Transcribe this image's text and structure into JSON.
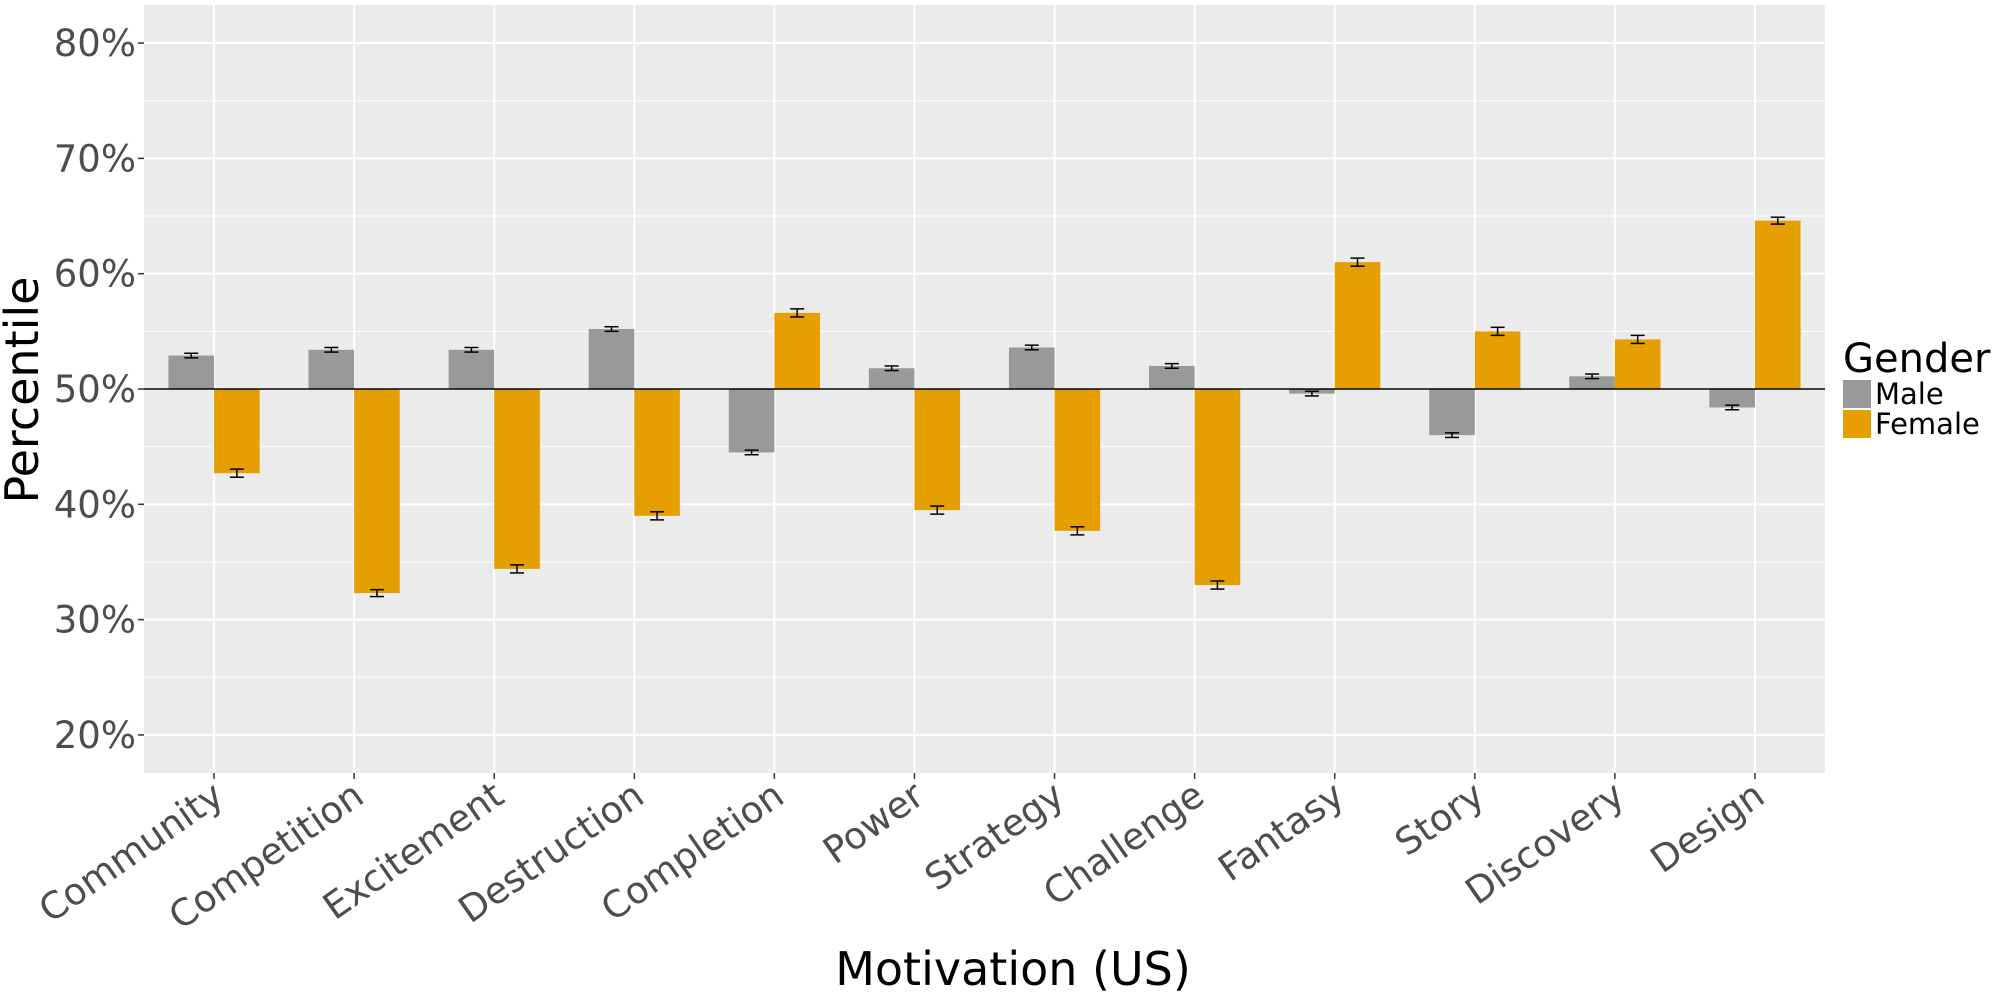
{
  "chart_data": {
    "type": "bar",
    "title": "",
    "xlabel": "Motivation (US)",
    "ylabel": "Percentile",
    "ylim": [
      16.7,
      83.3
    ],
    "yticks": [
      20,
      30,
      40,
      50,
      60,
      70,
      80
    ],
    "ytick_labels": [
      "20%",
      "30%",
      "40%",
      "50%",
      "60%",
      "70%",
      "80%"
    ],
    "baseline": 50,
    "grid": true,
    "legend": {
      "title": "Gender",
      "placement": "right"
    },
    "categories": [
      "Community",
      "Competition",
      "Excitement",
      "Destruction",
      "Completion",
      "Power",
      "Strategy",
      "Challenge",
      "Fantasy",
      "Story",
      "Discovery",
      "Design"
    ],
    "series": [
      {
        "name": "Male",
        "color": "#999999",
        "values": [
          52.9,
          53.4,
          53.4,
          55.2,
          44.5,
          51.8,
          53.6,
          52.0,
          49.6,
          46.0,
          51.1,
          48.4
        ],
        "errors": [
          0.2,
          0.2,
          0.2,
          0.2,
          0.2,
          0.2,
          0.2,
          0.2,
          0.2,
          0.2,
          0.2,
          0.2
        ]
      },
      {
        "name": "Female",
        "color": "#E69F00",
        "values": [
          42.7,
          32.3,
          34.4,
          39.0,
          56.6,
          39.5,
          37.7,
          33.0,
          61.0,
          55.0,
          54.3,
          64.6
        ],
        "errors": [
          0.35,
          0.3,
          0.35,
          0.35,
          0.35,
          0.35,
          0.35,
          0.35,
          0.35,
          0.35,
          0.35,
          0.3
        ]
      }
    ]
  }
}
